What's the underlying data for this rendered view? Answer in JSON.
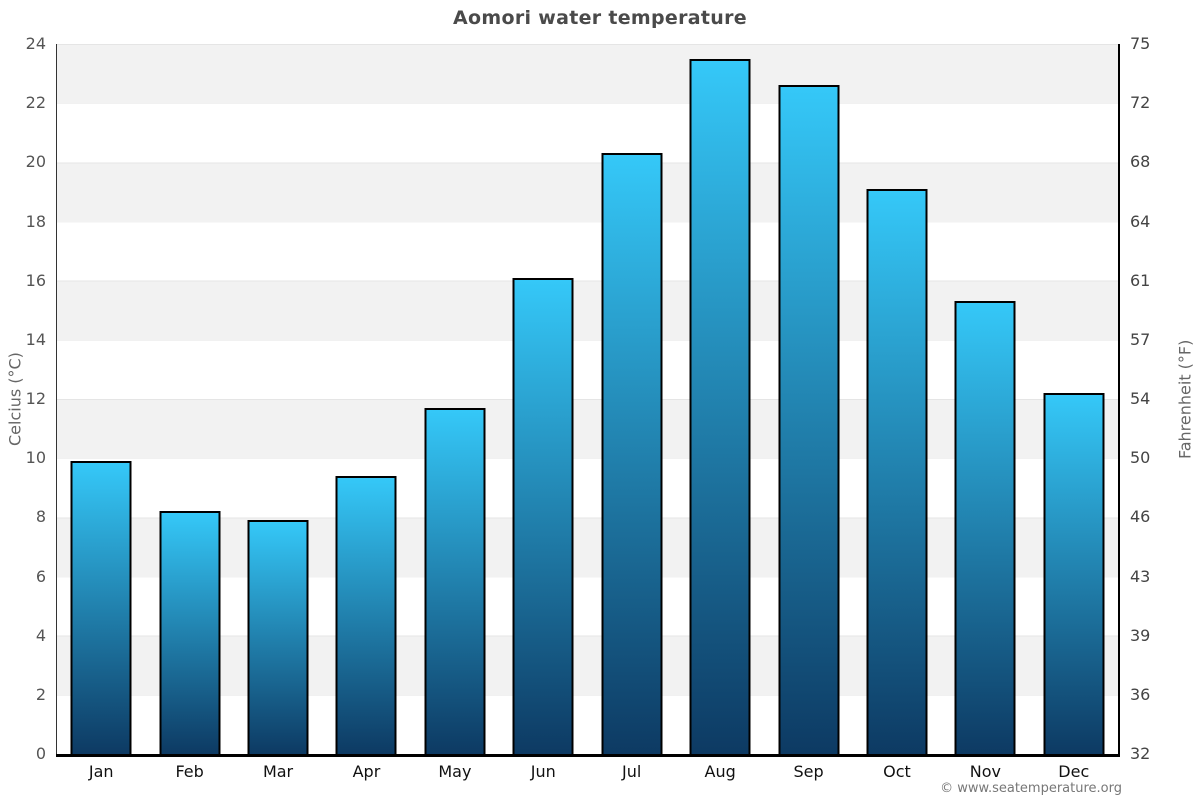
{
  "chart_data": {
    "type": "bar",
    "title": "Aomori water temperature",
    "categories": [
      "Jan",
      "Feb",
      "Mar",
      "Apr",
      "May",
      "Jun",
      "Jul",
      "Aug",
      "Sep",
      "Oct",
      "Nov",
      "Dec"
    ],
    "values": [
      9.9,
      8.2,
      7.9,
      9.4,
      11.7,
      16.1,
      20.3,
      23.5,
      22.6,
      19.1,
      15.3,
      12.2
    ],
    "ylabel_left": "Celcius (°C)",
    "ylabel_right": "Fahrenheit (°F)",
    "ylim": [
      0,
      24
    ],
    "yticks_left": [
      0,
      2,
      4,
      6,
      8,
      10,
      12,
      14,
      16,
      18,
      20,
      22,
      24
    ],
    "yticks_right": [
      32,
      36,
      39,
      43,
      46,
      50,
      54,
      57,
      61,
      64,
      68,
      72,
      75
    ],
    "grid": "alternating horizontal bands every 2°C, gray and white",
    "legend": "none"
  },
  "colors": {
    "bar_gradient_top": "#35c8f8",
    "bar_gradient_bottom": "#0d3a63",
    "bar_border": "#000000",
    "band_gray": "#f2f2f2",
    "band_white": "#ffffff",
    "title_text": "#4a4a4a",
    "tick_text": "#555555",
    "month_text": "#111111",
    "credit_text": "#777777"
  },
  "footer": {
    "credit": "© www.seatemperature.org"
  }
}
